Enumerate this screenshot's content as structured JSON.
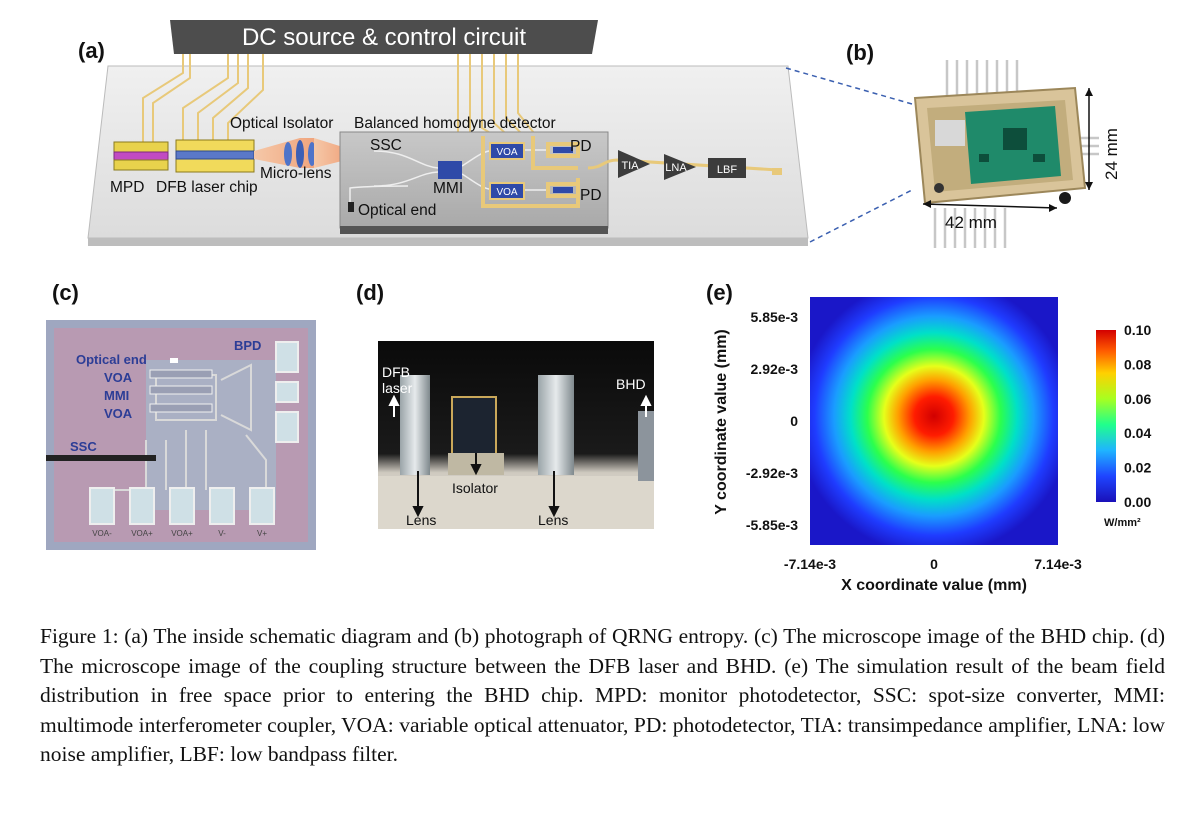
{
  "panels": {
    "a": {
      "label": "(a)",
      "dc_source": "DC source & control circuit",
      "optical_isolator": "Optical Isolator",
      "balanced_homodyne_detector": "Balanced homodyne detector",
      "ssc": "SSC",
      "pd_top": "PD",
      "pd_bottom": "PD",
      "voa_top": "VOA",
      "voa_bottom": "VOA",
      "tia": "TIA",
      "lna": "LNA",
      "lbf": "LBF",
      "mpd": "MPD",
      "dfb_laser_chip": "DFB laser chip",
      "micro_lens": "Micro-lens",
      "mmi": "MMI",
      "optical_end": "Optical end"
    },
    "b": {
      "label": "(b)",
      "width_dim": "42 mm",
      "height_dim": "24 mm"
    },
    "c": {
      "label": "(c)",
      "optical_end": "Optical end",
      "bpd": "BPD",
      "voa1": "VOA",
      "mmi": "MMI",
      "voa2": "VOA",
      "ssc": "SSC",
      "pad_labels": [
        "VOA-",
        "VOA+",
        "VOA+",
        "V-",
        "V+"
      ]
    },
    "d": {
      "label": "(d)",
      "dfb_laser": "DFB\nlaser",
      "bhd": "BHD",
      "isolator": "Isolator",
      "lens_left": "Lens",
      "lens_right": "Lens"
    },
    "e": {
      "label": "(e)",
      "colorbar_unit": "W/mm²"
    }
  },
  "chart_data": {
    "type": "heatmap",
    "xlabel": "X coordinate value (mm)",
    "ylabel": "Y coordinate value (mm)",
    "x_ticks": [
      "-7.14e-3",
      "0",
      "7.14e-3"
    ],
    "y_ticks": [
      "5.85e-3",
      "2.92e-3",
      "0",
      "-2.92e-3",
      "-5.85e-3"
    ],
    "xlim": [
      -0.00714,
      0.00714
    ],
    "ylim": [
      -0.00585,
      0.00585
    ],
    "colorbar_ticks": [
      "0.10",
      "0.08",
      "0.06",
      "0.04",
      "0.02",
      "0.00"
    ],
    "colorbar_range": [
      0.0,
      0.1
    ],
    "peak_value": 0.1,
    "peak_center": [
      0,
      0
    ],
    "colormap": "jet"
  },
  "caption": {
    "text": "Figure 1: (a) The inside schematic diagram and (b) photograph of QRNG entropy. (c) The microscope image of the BHD chip. (d) The microscope image of the coupling structure between the DFB laser and BHD. (e) The simulation result of the beam field distribution in free space prior to entering the BHD chip. MPD: monitor photodetector, SSC: spot-size converter, MMI: multimode interferometer coupler, VOA: variable optical attenuator, PD: photodetector, TIA: transimpedance amplifier, LNA: low noise amplifier, LBF: low bandpass filter."
  }
}
